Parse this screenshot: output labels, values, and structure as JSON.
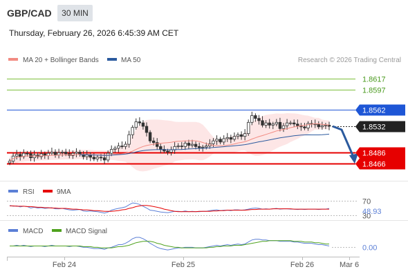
{
  "header": {
    "symbol": "GBP/CAD",
    "timeframe": "30 MIN",
    "datetime": "Thursday, February 26, 2026 6:45:39 AM CET"
  },
  "legend": {
    "ma20_label": "MA 20 + Bollinger Bands",
    "ma50_label": "MA 50",
    "credit": "Research © 2026 Trading Central"
  },
  "colors": {
    "ma20": "#f28b82",
    "ma50": "#2b5a9e",
    "band_fill": "#fde0e0",
    "green_level": "#7cbf3a",
    "resistance": "#1e56d6",
    "support": "#e60000",
    "current": "#222222",
    "forecast_arrow": "#2b5a9e",
    "rsi": "#5b7fd6",
    "rsi_ma": "#e60000",
    "macd": "#5b7fd6",
    "macd_signal": "#4fa21e"
  },
  "chart_data": [
    {
      "type": "candlestick",
      "title": "GBP/CAD",
      "ylim": [
        1.844,
        1.864
      ],
      "x_ticks": [
        "Feb 24",
        "Feb 25",
        "Feb 26",
        "Mar 6"
      ],
      "levels": [
        {
          "value": 1.8617,
          "label": "1.8617",
          "kind": "target",
          "color": "#7cbf3a",
          "text_color": "#4a9a1e"
        },
        {
          "value": 1.8597,
          "label": "1.8597",
          "kind": "target",
          "color": "#7cbf3a",
          "text_color": "#4a9a1e"
        },
        {
          "value": 1.8562,
          "label": "1.8562",
          "kind": "pivot",
          "color": "#1e56d6"
        },
        {
          "value": 1.8532,
          "label": "1.8532",
          "kind": "current",
          "color": "#222222"
        },
        {
          "value": 1.8486,
          "label": "1.8486",
          "kind": "support",
          "color": "#e60000"
        },
        {
          "value": 1.8466,
          "label": "1.8466",
          "kind": "support",
          "color": "#e60000"
        }
      ],
      "close_series": [
        1.847,
        1.8479,
        1.8482,
        1.8478,
        1.8484,
        1.8483,
        1.8476,
        1.8481,
        1.8478,
        1.8483,
        1.848,
        1.8484,
        1.8486,
        1.8481,
        1.8485,
        1.8486,
        1.8483,
        1.848,
        1.8484,
        1.8486,
        1.8482,
        1.8478,
        1.8481,
        1.8477,
        1.8474,
        1.8477,
        1.8476,
        1.8472,
        1.8484,
        1.8491,
        1.8493,
        1.8497,
        1.8496,
        1.85,
        1.8517,
        1.853,
        1.854,
        1.8538,
        1.8532,
        1.8521,
        1.8506,
        1.8503,
        1.8496,
        1.8491,
        1.8488,
        1.8486,
        1.849,
        1.8496,
        1.8497,
        1.8496,
        1.8502,
        1.8498,
        1.85,
        1.8496,
        1.8494,
        1.8495,
        1.8497,
        1.8501,
        1.8506,
        1.8509,
        1.8504,
        1.851,
        1.8512,
        1.8509,
        1.8514,
        1.8517,
        1.8514,
        1.8519,
        1.8539,
        1.8551,
        1.8546,
        1.8542,
        1.8534,
        1.8538,
        1.8534,
        1.8536,
        1.8539,
        1.8528,
        1.8533,
        1.8538,
        1.8538,
        1.8536,
        1.8533,
        1.8531,
        1.8529,
        1.8537,
        1.8536,
        1.8536,
        1.8531,
        1.8533,
        1.8534,
        1.8532
      ]
    },
    {
      "type": "line",
      "title": "RSI",
      "ylim": [
        30,
        70
      ],
      "levels": [
        {
          "value": 70,
          "label": "70"
        },
        {
          "value": 30,
          "label": "30"
        }
      ],
      "current_value": "48.93",
      "series": [
        {
          "name": "RSI",
          "values": [
            57,
            55,
            56,
            53,
            55,
            54,
            50,
            52,
            50,
            51,
            49,
            50,
            51,
            48,
            48,
            49,
            47,
            45,
            44,
            45,
            46,
            42,
            41,
            42,
            41,
            40,
            38,
            36,
            39,
            44,
            47,
            49,
            51,
            53,
            59,
            64,
            63,
            60,
            55,
            50,
            44,
            43,
            41,
            39,
            38,
            37,
            39,
            41,
            41,
            40,
            42,
            40,
            41,
            40,
            40,
            41,
            41,
            43,
            44,
            45,
            43,
            44,
            44,
            43,
            45,
            45,
            44,
            45,
            47,
            49,
            50,
            49,
            47,
            48,
            47,
            48,
            49,
            47,
            48,
            48,
            47,
            47,
            46,
            47,
            46,
            47,
            47,
            47,
            46,
            47,
            47,
            48.93
          ]
        },
        {
          "name": "9MA",
          "values": [
            56,
            56,
            55,
            55,
            55,
            54,
            54,
            53,
            52,
            52,
            51,
            51,
            50,
            50,
            49,
            49,
            49,
            48,
            47,
            47,
            46,
            45,
            45,
            44,
            43,
            43,
            42,
            41,
            41,
            41,
            42,
            43,
            45,
            46,
            49,
            51,
            54,
            56,
            57,
            57,
            56,
            54,
            52,
            50,
            47,
            45,
            43,
            41,
            40,
            40,
            40,
            40,
            40,
            40,
            41,
            41,
            41,
            41,
            42,
            42,
            43,
            43,
            44,
            44,
            44,
            44,
            44,
            44,
            45,
            46,
            46,
            47,
            47,
            47,
            47,
            48,
            48,
            48,
            48,
            48,
            48,
            47,
            47,
            47,
            47,
            47,
            47,
            47,
            47,
            47,
            47,
            47
          ]
        }
      ]
    },
    {
      "type": "line",
      "title": "MACD",
      "ylim": [
        -0.001,
        0.0016
      ],
      "levels": [
        {
          "value": 0,
          "label": "0.00"
        }
      ],
      "series": [
        {
          "name": "MACD",
          "values": [
            0.0002,
            0.0002,
            0.0003,
            0.0002,
            0.0003,
            0.0002,
            0.0001,
            0.0002,
            0.0002,
            0.0002,
            0.0001,
            0.0002,
            0.0003,
            0.0002,
            0.0002,
            0.0002,
            0.0002,
            0.0001,
            0.0002,
            0.0002,
            0.0001,
            0.0,
            0.0,
            -0.0001,
            -0.0002,
            -0.0002,
            -0.0002,
            -0.0003,
            -0.0001,
            0.0,
            0.0002,
            0.0004,
            0.0004,
            0.0006,
            0.0009,
            0.0013,
            0.0015,
            0.0015,
            0.0013,
            0.001,
            0.0006,
            0.0003,
            0.0,
            -0.0002,
            -0.0003,
            -0.0004,
            -0.0003,
            -0.0002,
            -0.0001,
            -0.0001,
            0.0,
            0.0,
            0.0,
            -0.0001,
            -0.0001,
            -0.0001,
            0.0,
            0.0001,
            0.0002,
            0.0003,
            0.0002,
            0.0003,
            0.0004,
            0.0003,
            0.0004,
            0.0005,
            0.0004,
            0.0005,
            0.0008,
            0.0011,
            0.0012,
            0.0012,
            0.0011,
            0.0011,
            0.001,
            0.001,
            0.001,
            0.0009,
            0.0009,
            0.0009,
            0.0009,
            0.0008,
            0.0008,
            0.0007,
            0.0006,
            0.0006,
            0.0006,
            0.0005,
            0.0004,
            0.0004,
            0.0003,
            0.0002
          ]
        },
        {
          "name": "MACD Signal",
          "values": [
            0.0002,
            0.0002,
            0.0002,
            0.0002,
            0.0002,
            0.0002,
            0.0002,
            0.0002,
            0.0002,
            0.0002,
            0.0002,
            0.0002,
            0.0002,
            0.0002,
            0.0002,
            0.0002,
            0.0002,
            0.0002,
            0.0002,
            0.0002,
            0.0002,
            0.0001,
            0.0001,
            0.0001,
            0.0,
            0.0,
            -0.0001,
            -0.0001,
            -0.0001,
            -0.0001,
            0.0,
            0.0001,
            0.0001,
            0.0002,
            0.0003,
            0.0005,
            0.0007,
            0.0008,
            0.0009,
            0.0009,
            0.0009,
            0.0008,
            0.0006,
            0.0005,
            0.0003,
            0.0002,
            0.0001,
            0.0,
            0.0,
            -0.0001,
            -0.0001,
            -0.0001,
            -0.0001,
            -0.0001,
            -0.0001,
            -0.0001,
            -0.0001,
            0.0,
            0.0,
            0.0001,
            0.0001,
            0.0002,
            0.0002,
            0.0002,
            0.0003,
            0.0003,
            0.0003,
            0.0004,
            0.0005,
            0.0006,
            0.0007,
            0.0008,
            0.0009,
            0.0009,
            0.001,
            0.001,
            0.001,
            0.001,
            0.001,
            0.001,
            0.001,
            0.0009,
            0.0009,
            0.0009,
            0.0008,
            0.0008,
            0.0008,
            0.0007,
            0.0007,
            0.0006,
            0.0005,
            0.0005
          ]
        }
      ]
    }
  ]
}
